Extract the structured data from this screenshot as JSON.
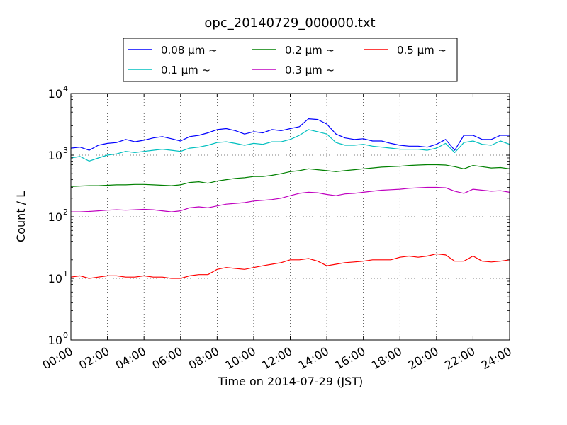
{
  "chart_data": {
    "type": "line",
    "title": "opc_20140729_000000.txt",
    "xlabel": "Time on 2014-07-29 (JST)",
    "ylabel": "Count / L",
    "x_ticks": [
      "00:00",
      "02:00",
      "04:00",
      "06:00",
      "08:00",
      "10:00",
      "12:00",
      "14:00",
      "16:00",
      "18:00",
      "20:00",
      "22:00",
      "24:00"
    ],
    "y_scale": "log",
    "y_tick_base": "10",
    "y_tick_exponents": [
      "0",
      "1",
      "2",
      "3",
      "4"
    ],
    "xlim_hours": [
      0,
      24
    ],
    "ylim": [
      1,
      10000
    ],
    "grid": true,
    "legend_position": "top-center",
    "x_hours": [
      0,
      0.5,
      1,
      1.5,
      2,
      2.5,
      3,
      3.5,
      4,
      4.5,
      5,
      5.5,
      6,
      6.5,
      7,
      7.5,
      8,
      8.5,
      9,
      9.5,
      10,
      10.5,
      11,
      11.5,
      12,
      12.5,
      13,
      13.5,
      14,
      14.5,
      15,
      15.5,
      16,
      16.5,
      17,
      17.5,
      18,
      18.5,
      19,
      19.5,
      20,
      20.5,
      21,
      21.5,
      22,
      22.5,
      23,
      23.5,
      24
    ],
    "series": [
      {
        "name": "0.08 μm ~",
        "color": "#0000ff",
        "values": [
          1300,
          1350,
          1200,
          1450,
          1550,
          1600,
          1800,
          1650,
          1750,
          1900,
          2000,
          1850,
          1700,
          2000,
          2100,
          2300,
          2600,
          2700,
          2500,
          2200,
          2400,
          2300,
          2600,
          2500,
          2700,
          2900,
          3900,
          3800,
          3200,
          2200,
          1900,
          1800,
          1850,
          1700,
          1700,
          1550,
          1450,
          1400,
          1400,
          1350,
          1500,
          1800,
          1200,
          2100,
          2100,
          1800,
          1800,
          2100,
          2100
        ]
      },
      {
        "name": "0.1 μm ~",
        "color": "#00bfbf",
        "values": [
          900,
          950,
          800,
          900,
          1000,
          1050,
          1150,
          1100,
          1150,
          1200,
          1250,
          1200,
          1150,
          1300,
          1350,
          1450,
          1600,
          1650,
          1550,
          1450,
          1550,
          1500,
          1650,
          1650,
          1800,
          2100,
          2600,
          2400,
          2200,
          1600,
          1450,
          1450,
          1500,
          1400,
          1350,
          1300,
          1250,
          1250,
          1250,
          1200,
          1300,
          1550,
          1100,
          1600,
          1700,
          1500,
          1450,
          1700,
          1500
        ]
      },
      {
        "name": "0.2 μm ~",
        "color": "#008000",
        "values": [
          310,
          315,
          320,
          320,
          325,
          330,
          330,
          335,
          335,
          330,
          325,
          320,
          330,
          360,
          370,
          350,
          380,
          400,
          420,
          430,
          450,
          450,
          470,
          500,
          540,
          560,
          600,
          580,
          560,
          540,
          560,
          580,
          600,
          620,
          640,
          650,
          660,
          680,
          690,
          700,
          700,
          690,
          650,
          600,
          680,
          650,
          620,
          630,
          600
        ]
      },
      {
        "name": "0.3 μm ~",
        "color": "#bf00bf",
        "values": [
          120,
          120,
          122,
          125,
          128,
          130,
          128,
          130,
          132,
          130,
          125,
          120,
          125,
          140,
          145,
          140,
          150,
          160,
          165,
          170,
          180,
          185,
          190,
          200,
          220,
          240,
          250,
          245,
          230,
          220,
          235,
          240,
          250,
          260,
          270,
          275,
          280,
          290,
          295,
          300,
          300,
          295,
          260,
          240,
          280,
          270,
          260,
          265,
          250
        ]
      },
      {
        "name": "0.5 μm ~",
        "color": "#ff0000",
        "values": [
          10.5,
          11,
          10,
          10.5,
          11,
          11,
          10.5,
          10.5,
          11,
          10.5,
          10.5,
          10,
          10,
          11,
          11.5,
          11.5,
          14,
          15,
          14.5,
          14,
          15,
          16,
          17,
          18,
          20,
          20,
          21,
          19,
          16,
          17,
          18,
          18.5,
          19,
          20,
          20,
          20,
          22,
          23,
          22,
          23,
          25,
          24,
          19,
          19,
          23,
          19,
          18.5,
          19,
          20
        ]
      }
    ]
  }
}
